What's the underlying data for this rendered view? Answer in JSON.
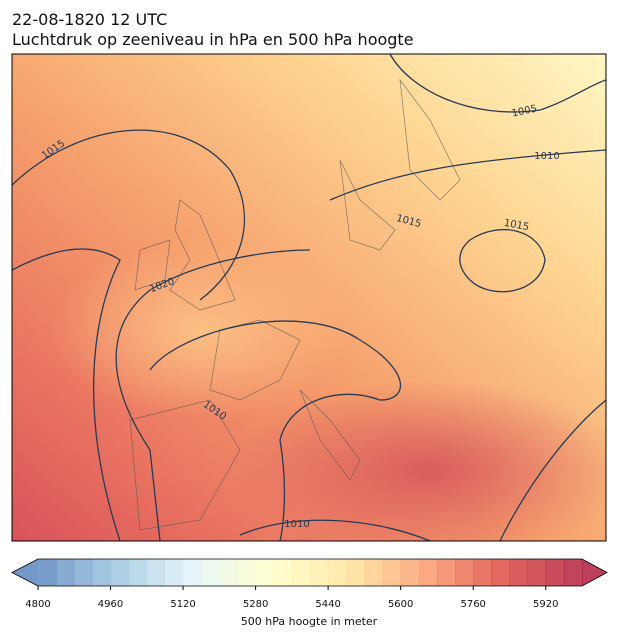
{
  "header": {
    "date": "22-08-1820 12 UTC",
    "title": "Luchtdruk op zeeniveau in hPa en 500 hPa hoogte"
  },
  "contour_labels": [
    1015,
    1005,
    1010,
    1020,
    1015,
    1015,
    1010,
    1010
  ],
  "colorbar": {
    "lim": [
      4800,
      6000
    ],
    "ticks": [
      4800,
      4960,
      5120,
      5280,
      5440,
      5600,
      5760,
      5920
    ],
    "label": "500 hPa hoogte in meter"
  }
}
